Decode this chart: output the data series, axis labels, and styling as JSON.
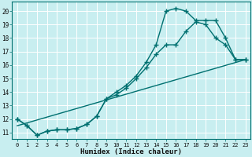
{
  "xlabel": "Humidex (Indice chaleur)",
  "bg_color": "#c8eef0",
  "grid_color": "#ffffff",
  "line_color": "#007070",
  "xlim": [
    -0.5,
    23.5
  ],
  "ylim": [
    10.5,
    20.7
  ],
  "xticks": [
    0,
    1,
    2,
    3,
    4,
    5,
    6,
    7,
    8,
    9,
    10,
    11,
    12,
    13,
    14,
    15,
    16,
    17,
    18,
    19,
    20,
    21,
    22,
    23
  ],
  "yticks": [
    11,
    12,
    13,
    14,
    15,
    16,
    17,
    18,
    19,
    20
  ],
  "line1_x": [
    0,
    1,
    2,
    3,
    4,
    5,
    6,
    7,
    8,
    9,
    10,
    11,
    12,
    13,
    14,
    15,
    16,
    17,
    18,
    19,
    20,
    21,
    22,
    23
  ],
  "line1_y": [
    12.0,
    11.5,
    10.8,
    11.1,
    11.2,
    11.2,
    11.3,
    11.6,
    12.2,
    13.5,
    13.8,
    14.3,
    15.0,
    15.8,
    16.8,
    17.5,
    17.5,
    18.5,
    19.2,
    19.0,
    18.0,
    17.5,
    16.4,
    16.4
  ],
  "line2_x": [
    0,
    1,
    2,
    3,
    4,
    5,
    6,
    7,
    8,
    9,
    10,
    11,
    12,
    13,
    14,
    15,
    16,
    17,
    18,
    19,
    20,
    21,
    22,
    23
  ],
  "line2_y": [
    12.0,
    11.5,
    10.8,
    11.1,
    11.2,
    11.2,
    11.3,
    11.6,
    12.2,
    13.5,
    14.0,
    14.5,
    15.2,
    16.2,
    17.5,
    20.0,
    20.2,
    20.0,
    19.3,
    19.3,
    19.3,
    18.0,
    16.4,
    16.4
  ],
  "line3_x": [
    0,
    23
  ],
  "line3_y": [
    11.5,
    16.4
  ],
  "marker": "+",
  "marker_size": 5,
  "line_width": 1.0
}
